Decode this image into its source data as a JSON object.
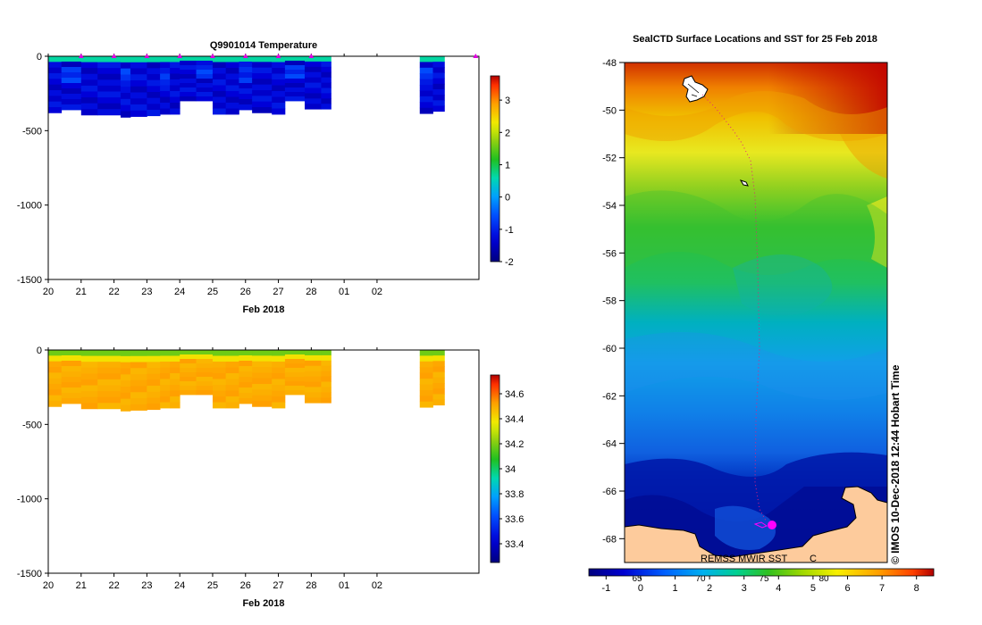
{
  "chart_data": [
    {
      "type": "heatmap",
      "title": "Q9901014  Temperature",
      "xlabel": "Feb 2018",
      "ylabel": "",
      "xticks": [
        "20",
        "21",
        "22",
        "23",
        "24",
        "25",
        "26",
        "27",
        "28",
        "01",
        "02"
      ],
      "yticks": [
        0,
        -500,
        -1000,
        -1500
      ],
      "ylim": [
        -1500,
        0
      ],
      "colorbar": {
        "min": -2,
        "max": 3.75,
        "ticks": [
          3,
          2,
          1,
          0,
          -1,
          -2
        ]
      },
      "profile_markers_day": [
        21,
        22,
        23,
        24,
        25,
        26,
        27,
        28,
        33
      ],
      "profile_depths_m": [
        [
          20.0,
          380
        ],
        [
          20.4,
          360
        ],
        [
          21.0,
          395
        ],
        [
          21.5,
          395
        ],
        [
          22.2,
          410
        ],
        [
          22.5,
          405
        ],
        [
          23.0,
          400
        ],
        [
          23.4,
          390
        ],
        [
          23.7,
          390
        ],
        [
          24.0,
          300
        ],
        [
          24.5,
          300
        ],
        [
          25.0,
          390
        ],
        [
          25.4,
          390
        ],
        [
          25.8,
          360
        ],
        [
          26.2,
          380
        ],
        [
          26.8,
          390
        ],
        [
          27.2,
          300
        ],
        [
          27.8,
          355
        ],
        [
          28.3,
          355
        ],
        [
          31.3,
          385
        ],
        [
          31.7,
          370
        ]
      ],
      "gap_days": [
        28.6,
        31.3
      ]
    },
    {
      "type": "heatmap",
      "title": "",
      "xlabel": "Feb 2018",
      "ylabel": "",
      "xticks": [
        "20",
        "21",
        "22",
        "23",
        "24",
        "25",
        "26",
        "27",
        "28",
        "01",
        "02"
      ],
      "yticks": [
        0,
        -500,
        -1000,
        -1500
      ],
      "ylim": [
        -1500,
        0
      ],
      "colorbar": {
        "min": 33.25,
        "max": 34.75,
        "ticks": [
          34.6,
          34.4,
          34.2,
          34,
          33.8,
          33.6,
          33.4
        ]
      },
      "profile_depths_m": [
        [
          20.0,
          380
        ],
        [
          20.4,
          360
        ],
        [
          21.0,
          395
        ],
        [
          21.5,
          395
        ],
        [
          22.2,
          410
        ],
        [
          22.5,
          405
        ],
        [
          23.0,
          400
        ],
        [
          23.4,
          390
        ],
        [
          23.7,
          390
        ],
        [
          24.0,
          300
        ],
        [
          24.5,
          300
        ],
        [
          25.0,
          390
        ],
        [
          25.4,
          390
        ],
        [
          25.8,
          360
        ],
        [
          26.2,
          380
        ],
        [
          26.8,
          390
        ],
        [
          27.2,
          300
        ],
        [
          27.8,
          355
        ],
        [
          28.3,
          355
        ],
        [
          31.3,
          385
        ],
        [
          31.7,
          370
        ]
      ],
      "gap_days": [
        28.6,
        31.3
      ]
    },
    {
      "type": "heatmap",
      "title": "SealCTD Surface Locations and SST for 25 Feb 2018",
      "xlabel": "",
      "ylabel": "",
      "ylim": [
        -69,
        -48
      ],
      "yticks": [
        -48,
        -50,
        -52,
        -54,
        -56,
        -58,
        -60,
        -62,
        -64,
        -66,
        -68
      ],
      "xticks_lon": [
        "65",
        "70",
        "75",
        "80"
      ],
      "sst_colorbar": {
        "min": -1.5,
        "max": 8.5,
        "ticks": [
          "-1",
          "0",
          "1",
          "2",
          "3",
          "4",
          "5",
          "6",
          "7",
          "8"
        ]
      },
      "credit": "© IMOS 10-Dec-2018 12:44 Hobart Time",
      "source_label": "REMSS MWIR SST",
      "bottom_label": "C"
    }
  ],
  "colors": {
    "land": "#fdcb9c",
    "seal_marker": "#ff00ff",
    "profile_marker": "#e000e0"
  }
}
